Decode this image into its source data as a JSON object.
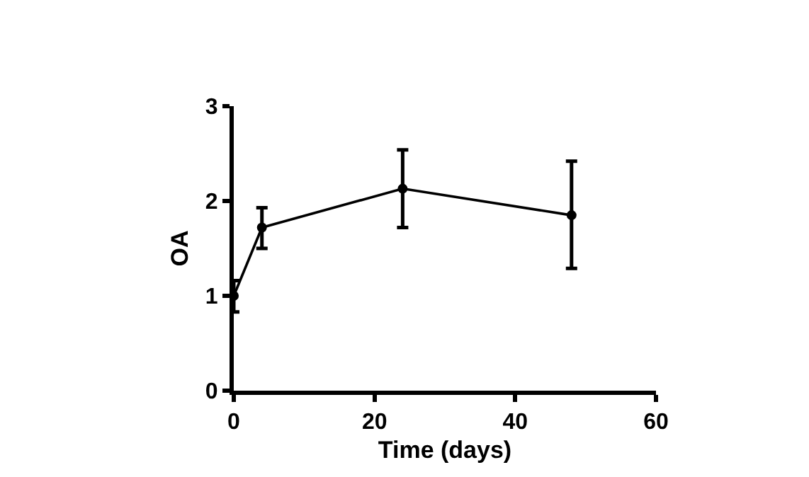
{
  "chart_data": {
    "type": "line",
    "xlabel": "Time (days)",
    "ylabel": "OA",
    "x": [
      0,
      4,
      24,
      48
    ],
    "series": [
      {
        "color": "#000000",
        "values": [
          1.0,
          1.72,
          2.13,
          1.85
        ],
        "errors": [
          [
            0.83,
            1.16
          ],
          [
            1.5,
            1.93
          ],
          [
            1.72,
            2.54
          ],
          [
            1.29,
            2.42
          ]
        ]
      }
    ],
    "xlim": [
      0,
      60
    ],
    "xticks": [
      0,
      20,
      40,
      60
    ],
    "ylim": [
      0,
      3
    ],
    "yticks": [
      0,
      1,
      2,
      3
    ],
    "marker": "circle",
    "line_style": "solid"
  }
}
